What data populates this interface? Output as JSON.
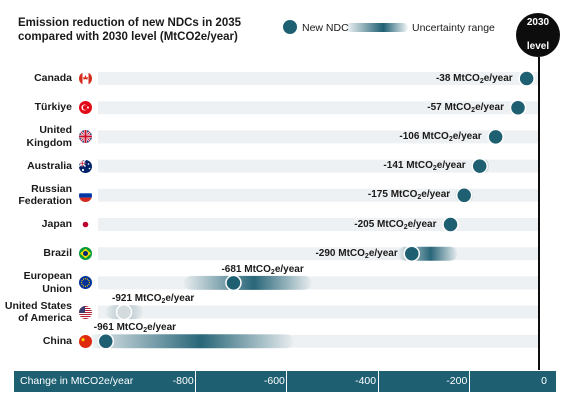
{
  "title": {
    "line1": "Emission reduction of new NDCs in 2035",
    "line2": "compared with 2030 level (MtCO2e/year)"
  },
  "legend": {
    "dot_label": "New NDC",
    "range_label": "Uncertainty range"
  },
  "badge": {
    "line1": "2030",
    "line2": "level"
  },
  "axis": {
    "title": "Change in  MtCO2e/year",
    "ticks": [
      "-800",
      "-600",
      "-400",
      "-200",
      "0"
    ]
  },
  "colors": {
    "accent": "#1e5f72",
    "row_band": "#eef1f3",
    "black": "#0d0d0d"
  },
  "chart_data": {
    "type": "dot-range",
    "title": "Emission reduction of new NDCs in 2035 compared with 2030 level (MtCO2e/year)",
    "xlabel": "Change in MtCO2e/year",
    "xlim": [
      -1000,
      0
    ],
    "unit": "MtCO2e/year",
    "rows": [
      {
        "country": "Canada",
        "flag": "canada-flag",
        "value": -38,
        "label": "-38 MtCO2e/year",
        "range": null,
        "faded": false
      },
      {
        "country": "Türkiye",
        "flag": "turkiye-flag",
        "value": -57,
        "label": "-57 MtCO2e/year",
        "range": null,
        "faded": false
      },
      {
        "country": "United\nKingdom",
        "flag": "uk-flag",
        "value": -106,
        "label": "-106 MtCO2e/year",
        "range": null,
        "faded": false
      },
      {
        "country": "Australia",
        "flag": "australia-flag",
        "value": -141,
        "label": "-141 MtCO2e/year",
        "range": [
          -160,
          -120
        ],
        "faded": false
      },
      {
        "country": "Russian\nFederation",
        "flag": "russia-flag",
        "value": -175,
        "label": "-175 MtCO2e/year",
        "range": [
          -195,
          -155
        ],
        "faded": false
      },
      {
        "country": "Japan",
        "flag": "japan-flag",
        "value": -205,
        "label": "-205 MtCO2e/year",
        "range": null,
        "faded": false
      },
      {
        "country": "Brazil",
        "flag": "brazil-flag",
        "value": -290,
        "label": "-290 MtCO2e/year",
        "range": [
          -320,
          -190
        ],
        "faded": false
      },
      {
        "country": "European\nUnion",
        "flag": "eu-flag",
        "value": -681,
        "label": "-681 MtCO2e/year",
        "range": [
          -790,
          -510
        ],
        "faded": false
      },
      {
        "country": "United States\nof America",
        "flag": "usa-flag",
        "value": -921,
        "label": "-921 MtCO2e/year",
        "range": [
          -960,
          -880
        ],
        "faded": true
      },
      {
        "country": "China",
        "flag": "china-flag",
        "value": -961,
        "label": "-961 MtCO2e/year",
        "range": [
          -1000,
          -550
        ],
        "faded": false
      }
    ]
  }
}
